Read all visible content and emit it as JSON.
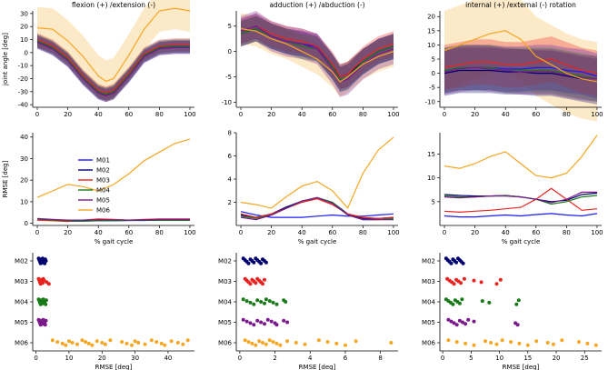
{
  "colors": {
    "M01": "#1a1aff",
    "M02": "#00006e",
    "M03": "#e8231f",
    "M04": "#1a7a1a",
    "M05": "#7a1a8c",
    "M06": "#f5a623"
  },
  "legend": [
    "M01",
    "M02",
    "M03",
    "M04",
    "M05",
    "M06"
  ],
  "columns": [
    {
      "title": "flexion (+) /extension (-)"
    },
    {
      "title": "adduction (+) /abduction (-)"
    },
    {
      "title": "internal (+) /external (-) rotation"
    }
  ],
  "row_labels": {
    "angle_ylabel": "joint angle [deg]",
    "rmse_ylabel": "RMSE [deg]",
    "gait_xlabel": "% gait cycle",
    "rmse_xlabel": "RMSE [deg]"
  },
  "chart_data": [
    {
      "id": "angle-flexion",
      "type": "line",
      "xlim": [
        -3,
        103
      ],
      "ylim": [
        -42,
        32
      ],
      "xticks": [
        0,
        20,
        40,
        60,
        80,
        100
      ],
      "yticks": [
        -40,
        -30,
        -20,
        -10,
        0,
        10,
        20,
        30
      ],
      "x": [
        0,
        10,
        20,
        30,
        40,
        45,
        50,
        60,
        70,
        80,
        90,
        100
      ],
      "series": [
        {
          "name": "M01",
          "values": [
            9,
            4,
            -5,
            -19,
            -30,
            -32,
            -30,
            -17,
            -2,
            4,
            5,
            5
          ],
          "band": 5
        },
        {
          "name": "M02",
          "values": [
            8,
            3,
            -6,
            -20,
            -31,
            -33,
            -31,
            -18,
            -3,
            3,
            4,
            4
          ],
          "band": 5
        },
        {
          "name": "M03",
          "values": [
            10,
            5,
            -4,
            -18,
            -29,
            -31,
            -29,
            -16,
            -1,
            5,
            6,
            6
          ],
          "band": 5
        },
        {
          "name": "M04",
          "values": [
            9,
            4,
            -5,
            -19,
            -30,
            -32,
            -30,
            -17,
            -2,
            4,
            5,
            5
          ],
          "band": 5
        },
        {
          "name": "M05",
          "values": [
            8,
            3,
            -6,
            -20,
            -31,
            -33,
            -31,
            -18,
            -3,
            3,
            4,
            4
          ],
          "band": 5
        },
        {
          "name": "M06",
          "values": [
            19,
            18,
            9,
            -3,
            -18,
            -22,
            -20,
            -2,
            18,
            32,
            34,
            32
          ],
          "band": 16
        }
      ]
    },
    {
      "id": "angle-adduction",
      "type": "line",
      "xlim": [
        -3,
        103
      ],
      "ylim": [
        -11,
        8
      ],
      "xticks": [
        0,
        20,
        40,
        60,
        80,
        100
      ],
      "yticks": [
        -10,
        -5,
        0,
        5
      ],
      "x": [
        0,
        10,
        20,
        30,
        40,
        50,
        60,
        65,
        70,
        80,
        90,
        100
      ],
      "series": [
        {
          "name": "M01",
          "values": [
            4,
            5,
            3,
            2,
            1.5,
            1,
            -3,
            -5.5,
            -5,
            -2,
            0,
            1
          ],
          "band": 2.5
        },
        {
          "name": "M02",
          "values": [
            3.5,
            4.5,
            3,
            2,
            1.5,
            0.5,
            -3,
            -5,
            -4.5,
            -2,
            0,
            1
          ],
          "band": 2.5
        },
        {
          "name": "M03",
          "values": [
            4,
            5,
            3.5,
            2.5,
            2,
            1,
            -2.5,
            -5,
            -4.5,
            -1.5,
            0.5,
            1.5
          ],
          "band": 2.5
        },
        {
          "name": "M04",
          "values": [
            3.5,
            4.5,
            3,
            2,
            1,
            0.5,
            -3,
            -5.5,
            -5,
            -2,
            0,
            1
          ],
          "band": 2.5
        },
        {
          "name": "M05",
          "values": [
            4,
            5,
            3,
            2,
            1.5,
            0.5,
            -3.5,
            -6,
            -5.5,
            -2.5,
            -0.5,
            0.5
          ],
          "band": 3
        },
        {
          "name": "M06",
          "values": [
            4.5,
            4,
            2.5,
            1.5,
            0,
            -1.5,
            -4,
            -6,
            -5,
            -2.5,
            -1,
            0
          ],
          "band": 3
        }
      ]
    },
    {
      "id": "angle-rotation",
      "type": "line",
      "xlim": [
        -3,
        103
      ],
      "ylim": [
        -12,
        22
      ],
      "xticks": [
        0,
        20,
        40,
        60,
        80,
        100
      ],
      "yticks": [
        -10,
        -5,
        0,
        5,
        10,
        15,
        20
      ],
      "x": [
        0,
        10,
        20,
        30,
        40,
        50,
        60,
        70,
        80,
        90,
        100
      ],
      "series": [
        {
          "name": "M01",
          "values": [
            1,
            2,
            2,
            2,
            1.5,
            1.5,
            2,
            2,
            1,
            0.5,
            -1
          ],
          "band": 8
        },
        {
          "name": "M02",
          "values": [
            0,
            1,
            1,
            1,
            0.5,
            0.5,
            0,
            0,
            -1,
            -2,
            -3
          ],
          "band": 8
        },
        {
          "name": "M03",
          "values": [
            2,
            3,
            4,
            4,
            3,
            3,
            4,
            5,
            3,
            1,
            0
          ],
          "band": 8
        },
        {
          "name": "M04",
          "values": [
            1,
            2,
            2,
            2,
            1,
            1,
            1,
            1,
            0,
            -1,
            -2
          ],
          "band": 8
        },
        {
          "name": "M05",
          "values": [
            0.5,
            1.5,
            2,
            1.5,
            1,
            0.5,
            0.5,
            0.5,
            -0.5,
            -1.5,
            -2
          ],
          "band": 8
        },
        {
          "name": "M06",
          "values": [
            8,
            10,
            12,
            14,
            15,
            12,
            6,
            3,
            0,
            -2,
            -3
          ],
          "band": 14
        }
      ]
    },
    {
      "id": "rmse-flexion",
      "type": "line",
      "xlim": [
        -3,
        103
      ],
      "ylim": [
        -1,
        42
      ],
      "xticks": [
        0,
        20,
        40,
        60,
        80,
        100
      ],
      "yticks": [
        0,
        10,
        20,
        30,
        40
      ],
      "x": [
        0,
        10,
        20,
        30,
        40,
        50,
        60,
        70,
        80,
        90,
        100
      ],
      "series": [
        {
          "name": "M01",
          "values": [
            2,
            1.5,
            1,
            1,
            1.2,
            1.2,
            1.3,
            1.3,
            1.5,
            1.5,
            1.5
          ]
        },
        {
          "name": "M02",
          "values": [
            2,
            1.5,
            1,
            1.2,
            1.3,
            1.5,
            1.5,
            1.5,
            1.5,
            1.5,
            1.5
          ]
        },
        {
          "name": "M03",
          "values": [
            1.5,
            1.2,
            0.8,
            1.5,
            2,
            1.8,
            1.5,
            1.8,
            2,
            2,
            2
          ]
        },
        {
          "name": "M04",
          "values": [
            2,
            1.5,
            1.2,
            1,
            1.2,
            1.2,
            1.3,
            1.5,
            1.5,
            1.5,
            1.5
          ]
        },
        {
          "name": "M05",
          "values": [
            2.2,
            1.8,
            1.5,
            1.5,
            1.6,
            1.6,
            1.5,
            1.6,
            1.8,
            1.8,
            1.8
          ]
        },
        {
          "name": "M06",
          "values": [
            12,
            15,
            18,
            17,
            15,
            18,
            23,
            29,
            33,
            37,
            39
          ]
        }
      ]
    },
    {
      "id": "rmse-adduction",
      "type": "line",
      "xlim": [
        -3,
        103
      ],
      "ylim": [
        0,
        8
      ],
      "xticks": [
        0,
        20,
        40,
        60,
        80,
        100
      ],
      "yticks": [
        2,
        4,
        6,
        8
      ],
      "x": [
        0,
        10,
        20,
        30,
        40,
        50,
        60,
        70,
        80,
        90,
        100
      ],
      "series": [
        {
          "name": "M01",
          "values": [
            1.2,
            0.9,
            0.7,
            0.7,
            0.7,
            0.8,
            0.9,
            0.8,
            0.8,
            0.9,
            1.0
          ]
        },
        {
          "name": "M02",
          "values": [
            0.9,
            0.7,
            1.0,
            1.6,
            2.1,
            2.4,
            2.0,
            1.0,
            0.6,
            0.6,
            0.7
          ]
        },
        {
          "name": "M03",
          "values": [
            1.0,
            0.7,
            1.0,
            1.5,
            2.0,
            2.3,
            1.8,
            1.0,
            0.7,
            0.6,
            0.7
          ]
        },
        {
          "name": "M04",
          "values": [
            0.8,
            0.6,
            0.9,
            1.5,
            2.1,
            2.4,
            2.0,
            0.9,
            0.5,
            0.5,
            0.6
          ]
        },
        {
          "name": "M05",
          "values": [
            0.7,
            0.5,
            0.9,
            1.5,
            2.1,
            2.4,
            1.9,
            0.9,
            0.5,
            0.5,
            0.5
          ]
        },
        {
          "name": "M06",
          "values": [
            2.0,
            1.8,
            1.5,
            2.5,
            3.4,
            3.8,
            3.0,
            1.5,
            4.5,
            6.5,
            7.6
          ]
        }
      ]
    },
    {
      "id": "rmse-rotation",
      "type": "line",
      "xlim": [
        -3,
        103
      ],
      "ylim": [
        0,
        19.5
      ],
      "xticks": [
        0,
        20,
        40,
        60,
        80,
        100
      ],
      "yticks": [
        5,
        10,
        15
      ],
      "x": [
        0,
        10,
        20,
        30,
        40,
        50,
        60,
        70,
        80,
        90,
        100
      ],
      "series": [
        {
          "name": "M01",
          "values": [
            2.0,
            1.8,
            1.8,
            2.0,
            2.2,
            2.0,
            2.3,
            2.5,
            2.2,
            2.0,
            2.5
          ]
        },
        {
          "name": "M02",
          "values": [
            6.5,
            6.3,
            6.2,
            6.2,
            6.3,
            6.0,
            5.5,
            5.0,
            5.3,
            6.5,
            6.8
          ]
        },
        {
          "name": "M03",
          "values": [
            3.0,
            2.8,
            3.0,
            3.2,
            3.5,
            3.8,
            5.5,
            7.8,
            5.5,
            3.2,
            3.5
          ]
        },
        {
          "name": "M04",
          "values": [
            6.2,
            6.0,
            6.0,
            6.2,
            6.3,
            6.0,
            5.5,
            4.5,
            5.0,
            6.0,
            6.3
          ]
        },
        {
          "name": "M05",
          "values": [
            6.0,
            5.8,
            6.0,
            6.2,
            6.2,
            6.0,
            5.5,
            4.8,
            5.5,
            7.0,
            7.0
          ]
        },
        {
          "name": "M06",
          "values": [
            12.5,
            12.0,
            13.0,
            14.5,
            15.5,
            13.0,
            10.5,
            10.0,
            11.0,
            14.5,
            19.0
          ]
        }
      ]
    },
    {
      "id": "scatter-flexion",
      "type": "scatter",
      "xlim": [
        -1,
        48
      ],
      "xticks": [
        0,
        10,
        20,
        30,
        40
      ],
      "categories": [
        "M02",
        "M03",
        "M04",
        "M05",
        "M06"
      ],
      "series": [
        {
          "name": "M02",
          "values": [
            0.8,
            1.0,
            1.2,
            1.4,
            1.5,
            1.7,
            1.9,
            2.0,
            2.2,
            2.4,
            2.6,
            2.8,
            3.0
          ]
        },
        {
          "name": "M03",
          "values": [
            0.8,
            1.0,
            1.2,
            1.4,
            1.6,
            1.8,
            2.0,
            2.2,
            2.5,
            3.2,
            3.9
          ]
        },
        {
          "name": "M04",
          "values": [
            0.8,
            1.0,
            1.2,
            1.4,
            1.6,
            1.8,
            2.0,
            2.2,
            2.4,
            2.6,
            2.9,
            3.1
          ]
        },
        {
          "name": "M05",
          "values": [
            0.8,
            1.0,
            1.2,
            1.4,
            1.6,
            1.8,
            2.0,
            2.2,
            2.4,
            2.6,
            2.8,
            3.0
          ]
        },
        {
          "name": "M06",
          "values": [
            5,
            6.5,
            8,
            9,
            10,
            11,
            12.5,
            14,
            15,
            16,
            17,
            18.5,
            20,
            21,
            22.5,
            26,
            27.5,
            29,
            30,
            31,
            33,
            35,
            36.5,
            38,
            39,
            41,
            43,
            44.5,
            46
          ]
        }
      ]
    },
    {
      "id": "scatter-adduction",
      "type": "scatter",
      "xlim": [
        -0.2,
        9
      ],
      "xticks": [
        0,
        2,
        4,
        6,
        8
      ],
      "categories": [
        "M02",
        "M03",
        "M04",
        "M05",
        "M06"
      ],
      "series": [
        {
          "name": "M02",
          "values": [
            0.2,
            0.3,
            0.4,
            0.5,
            0.6,
            0.7,
            0.8,
            0.9,
            1.0,
            1.1,
            1.2,
            1.3,
            1.4,
            1.5
          ]
        },
        {
          "name": "M03",
          "values": [
            0.3,
            0.4,
            0.5,
            0.6,
            0.7,
            0.8,
            0.9,
            1.0,
            1.1,
            1.2,
            1.3,
            1.4
          ]
        },
        {
          "name": "M04",
          "values": [
            0.2,
            0.4,
            0.6,
            0.8,
            1.0,
            1.2,
            1.4,
            1.5,
            1.7,
            1.9,
            2.1,
            2.5,
            2.6
          ]
        },
        {
          "name": "M05",
          "values": [
            0.2,
            0.4,
            0.6,
            0.8,
            1.0,
            1.2,
            1.4,
            1.6,
            1.8,
            2.0,
            2.1,
            2.5,
            2.7
          ]
        },
        {
          "name": "M06",
          "values": [
            0.3,
            0.5,
            0.7,
            0.9,
            1.1,
            1.3,
            1.5,
            1.7,
            1.9,
            2.1,
            2.3,
            2.7,
            3.2,
            3.7,
            4.5,
            5.0,
            5.5,
            6.0,
            6.6,
            8.6
          ]
        }
      ]
    },
    {
      "id": "scatter-rotation",
      "type": "scatter",
      "xlim": [
        -0.5,
        28
      ],
      "xticks": [
        0,
        5,
        10,
        15,
        20,
        25
      ],
      "categories": [
        "M02",
        "M03",
        "M04",
        "M05",
        "M06"
      ],
      "series": [
        {
          "name": "M02",
          "values": [
            0.6,
            0.9,
            1.2,
            1.5,
            1.8,
            2.1,
            2.4,
            2.7,
            3.0,
            3.3,
            3.6
          ]
        },
        {
          "name": "M03",
          "values": [
            0.8,
            1.2,
            1.6,
            2.0,
            2.4,
            2.8,
            3.2,
            3.8,
            5.5,
            6.8,
            9.5,
            10.2
          ]
        },
        {
          "name": "M04",
          "values": [
            0.6,
            1.0,
            1.4,
            1.8,
            2.2,
            2.6,
            3.0,
            3.4,
            7.0,
            8.2,
            13.0,
            13.4
          ]
        },
        {
          "name": "M05",
          "values": [
            1.0,
            1.5,
            2.0,
            2.5,
            3.0,
            3.5,
            4.0,
            4.5,
            5.5,
            12.8,
            13.2
          ]
        },
        {
          "name": "M06",
          "values": [
            1.0,
            2.5,
            4.0,
            5.5,
            7.5,
            8.5,
            9.5,
            10.5,
            12.0,
            13.5,
            15.0,
            16.5,
            18.5,
            19.5,
            21.0,
            24.0,
            25.5,
            27.0
          ]
        }
      ]
    }
  ]
}
